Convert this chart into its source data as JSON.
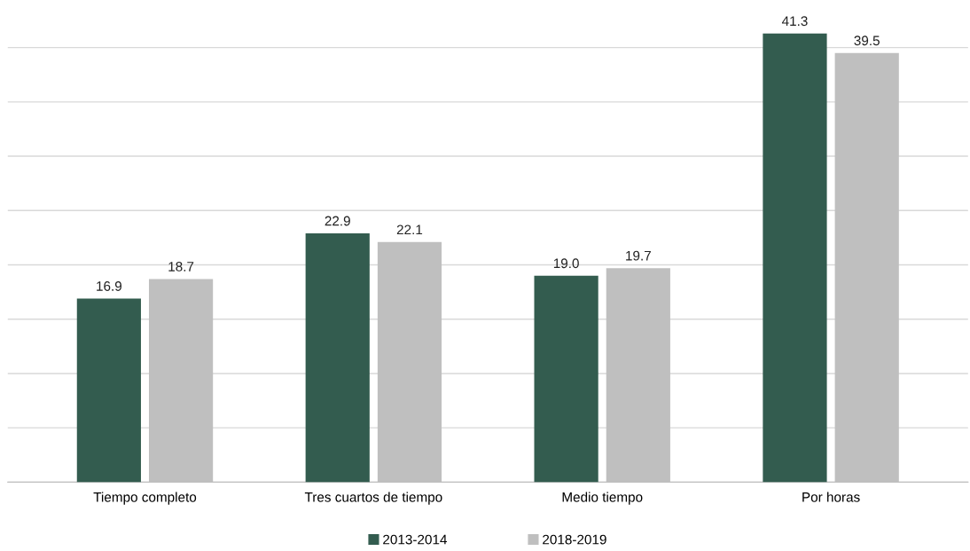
{
  "chart_data": {
    "type": "bar",
    "categories": [
      "Tiempo completo",
      "Tres cuartos de tiempo",
      "Medio tiempo",
      "Por horas"
    ],
    "series": [
      {
        "name": "2013-2014",
        "color": "#335c4f",
        "values": [
          16.9,
          22.9,
          19.0,
          41.3
        ],
        "value_labels": [
          "16.9",
          "22.9",
          "19.0",
          "41.3"
        ]
      },
      {
        "name": "2018-2019",
        "color": "#bfbfbf",
        "values": [
          18.7,
          22.1,
          19.7,
          39.5
        ],
        "value_labels": [
          "18.7",
          "22.1",
          "19.7",
          "39.5"
        ]
      }
    ],
    "grid": "y",
    "legend": "bottom",
    "tick_labels": "x"
  }
}
